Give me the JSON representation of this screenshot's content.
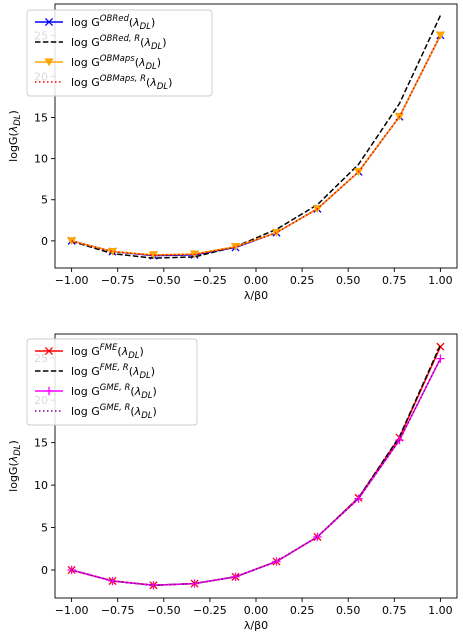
{
  "chart_data": [
    {
      "type": "line",
      "title": "",
      "xlabel": "λ/β0",
      "ylabel": "logG(λ_DL)",
      "xlim": [
        -1.09,
        1.09
      ],
      "ylim": [
        -3.3,
        28.8
      ],
      "x_ticks": [
        -1.0,
        -0.75,
        -0.5,
        -0.25,
        0.0,
        0.25,
        0.5,
        0.75,
        1.0
      ],
      "x_tick_labels": [
        "−1.00",
        "−0.75",
        "−0.50",
        "−0.25",
        "0.00",
        "0.25",
        "0.50",
        "0.75",
        "1.00"
      ],
      "y_ticks": [
        0,
        5,
        10,
        15,
        20,
        25
      ],
      "y_tick_labels": [
        "0",
        "5",
        "10",
        "15",
        "20",
        "25"
      ],
      "grid": false,
      "legend_position": "top-left",
      "x": [
        -1.0,
        -0.778,
        -0.556,
        -0.333,
        -0.111,
        0.111,
        0.333,
        0.556,
        0.778,
        1.0
      ],
      "series": [
        {
          "name": "log G^{OBRed}(λ_DL)",
          "legend_base": "log G",
          "legend_sup": "OBRed",
          "legend_tail": "",
          "color": "#0000ff",
          "linestyle": "solid",
          "marker": "x",
          "values": [
            0.0,
            -1.3,
            -1.8,
            -1.7,
            -0.8,
            1.0,
            3.9,
            8.4,
            15.1,
            25.0
          ]
        },
        {
          "name": "log G^{OBRed,R}(λ_DL)",
          "legend_base": "log G",
          "legend_sup": "OBRed, R",
          "legend_tail": "",
          "color": "#000000",
          "linestyle": "dashed",
          "marker": "none",
          "values": [
            -0.05,
            -1.55,
            -2.1,
            -1.95,
            -0.7,
            1.4,
            4.4,
            9.3,
            16.7,
            27.4
          ]
        },
        {
          "name": "log G^{OBMaps}(λ_DL)",
          "legend_base": "log G",
          "legend_sup": "OBMaps",
          "legend_tail": "",
          "color": "#ffa500",
          "linestyle": "solid",
          "marker": "triangle-down",
          "values": [
            0.0,
            -1.3,
            -1.7,
            -1.6,
            -0.7,
            1.0,
            3.9,
            8.4,
            15.1,
            25.0
          ]
        },
        {
          "name": "log G^{OBMaps,R}(λ_DL)",
          "legend_base": "log G",
          "legend_sup": "OBMaps, R",
          "legend_tail": "",
          "color": "#ff0000",
          "linestyle": "dotted",
          "marker": "none",
          "values": [
            0.0,
            -1.3,
            -1.75,
            -1.65,
            -0.75,
            1.0,
            3.9,
            8.4,
            15.1,
            25.0
          ]
        }
      ]
    },
    {
      "type": "line",
      "title": "",
      "xlabel": "λ/β0",
      "ylabel": "logG(λ_DL)",
      "xlim": [
        -1.09,
        1.09
      ],
      "ylim": [
        -3.3,
        27.8
      ],
      "x_ticks": [
        -1.0,
        -0.75,
        -0.5,
        -0.25,
        0.0,
        0.25,
        0.5,
        0.75,
        1.0
      ],
      "x_tick_labels": [
        "−1.00",
        "−0.75",
        "−0.50",
        "−0.25",
        "0.00",
        "0.25",
        "0.50",
        "0.75",
        "1.00"
      ],
      "y_ticks": [
        0,
        5,
        10,
        15,
        20,
        25
      ],
      "y_tick_labels": [
        "0",
        "5",
        "10",
        "15",
        "20",
        "25"
      ],
      "grid": false,
      "legend_position": "top-left",
      "x": [
        -1.0,
        -0.778,
        -0.556,
        -0.333,
        -0.111,
        0.111,
        0.333,
        0.556,
        0.778,
        1.0
      ],
      "series": [
        {
          "name": "log G^{FME}(λ_DL)",
          "legend_base": "log G",
          "legend_sup": "FME",
          "legend_tail": "",
          "color": "#ff0000",
          "linestyle": "solid",
          "marker": "x",
          "values": [
            0.0,
            -1.3,
            -1.8,
            -1.6,
            -0.8,
            1.0,
            3.9,
            8.5,
            15.6,
            26.3
          ]
        },
        {
          "name": "log G^{FME,R}(λ_DL)",
          "legend_base": "log G",
          "legend_sup": "FME, R",
          "legend_tail": "",
          "color": "#000000",
          "linestyle": "dashed",
          "marker": "none",
          "values": [
            0.0,
            -1.3,
            -1.8,
            -1.6,
            -0.8,
            1.0,
            3.9,
            8.5,
            15.7,
            26.5
          ]
        },
        {
          "name": "log G^{GME,R}(λ_DL)",
          "legend_base": "log G",
          "legend_sup": "GME, R",
          "legend_tail": "",
          "color": "#ff00ff",
          "linestyle": "solid",
          "marker": "plus",
          "values": [
            0.0,
            -1.3,
            -1.8,
            -1.6,
            -0.8,
            1.0,
            3.9,
            8.4,
            15.3,
            24.9
          ]
        },
        {
          "name": "log G^{GME,R}(λ_DL)",
          "legend_base": "log G",
          "legend_sup": "GME, R",
          "legend_tail": "",
          "color": "#800080",
          "linestyle": "dotted",
          "marker": "none",
          "values": [
            0.0,
            -1.3,
            -1.8,
            -1.6,
            -0.8,
            1.0,
            3.9,
            8.4,
            15.3,
            24.9
          ]
        }
      ]
    }
  ]
}
